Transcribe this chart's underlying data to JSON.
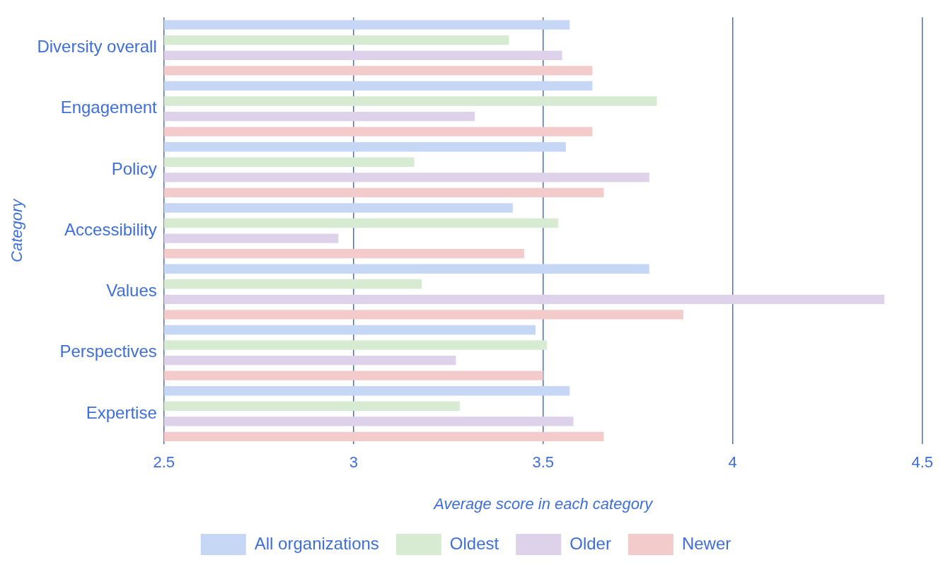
{
  "chart_data": {
    "type": "bar",
    "orientation": "horizontal",
    "xlabel": "Average score in each category",
    "ylabel": "Category",
    "categories": [
      "Diversity overall",
      "Engagement",
      "Policy",
      "Accessibility",
      "Values",
      "Perspectives",
      "Expertise"
    ],
    "series": [
      {
        "name": "All organizations",
        "color": "#c6d6f5",
        "values": [
          3.57,
          3.63,
          3.56,
          3.42,
          3.78,
          3.48,
          3.57
        ]
      },
      {
        "name": "Oldest",
        "color": "#d6ebd2",
        "values": [
          3.41,
          3.8,
          3.16,
          3.54,
          3.18,
          3.51,
          3.28
        ]
      },
      {
        "name": "Older",
        "color": "#ddd2ea",
        "values": [
          3.55,
          3.32,
          3.78,
          2.96,
          4.4,
          3.27,
          3.58
        ]
      },
      {
        "name": "Newer",
        "color": "#f4cbcb",
        "values": [
          3.63,
          3.63,
          3.66,
          3.45,
          3.87,
          3.5,
          3.66
        ]
      }
    ],
    "xlim": [
      2.5,
      4.5
    ],
    "xticks": [
      2.5,
      3,
      3.5,
      4,
      4.5
    ],
    "grid": "x",
    "legend": "bottom"
  }
}
